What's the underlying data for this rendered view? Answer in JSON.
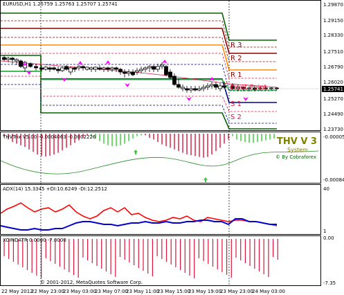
{
  "main": {
    "header": "EURUSD,H1  1.25759 1.25763 1.25707 1.25741",
    "price_ticks": [
      "1.29870",
      "1.29150",
      "1.28330",
      "1.27510",
      "1.26790",
      "1.26020",
      "1.25270",
      "1.24490",
      "1.23730"
    ],
    "current_price": "1.25741",
    "levels": {
      "r3": "R 3",
      "r2": "R 2",
      "r1": "R 1",
      "pivot": "Pivot Point",
      "s1": "S 1",
      "s2": "S 2"
    }
  },
  "thv": {
    "header": "THVTrix V5.00 -0.0004063 -0.0002226",
    "ticks": [
      "-0.00005",
      "-0.00084"
    ],
    "brand_title": "THV V 3",
    "brand_system": "System",
    "brand_credit": "© By Cobraforex"
  },
  "adx": {
    "header": "ADX(14) 15.3345 +DI:10.6249 -DI:12.2512",
    "ticks": [
      "40",
      "1"
    ]
  },
  "xo": {
    "header": "XOINDATR 0.0000 -7.0000",
    "ticks": [
      "0.00",
      "-7.35"
    ],
    "copyright": "© 2001-2012, MetaQuotes Software Corp."
  },
  "x_labels": [
    "22 May 2012",
    "22 May 23:00",
    "23 May 03:00",
    "23 May 07:00",
    "23 May 11:00",
    "23 May 15:00",
    "23 May 19:00",
    "23 May 23:00",
    "24 May 03:00"
  ],
  "colors": {
    "r3": "#006400",
    "r2": "#8b0000",
    "r1": "#ff8c00",
    "pivot": "#dc143c",
    "s1": "#00008b",
    "s2": "#006400",
    "bull": "#32cd32",
    "bear": "#dc143c",
    "adx_plus": "#0000cd",
    "adx_minus": "#ff0000",
    "arrow": "#ff00ff"
  }
}
